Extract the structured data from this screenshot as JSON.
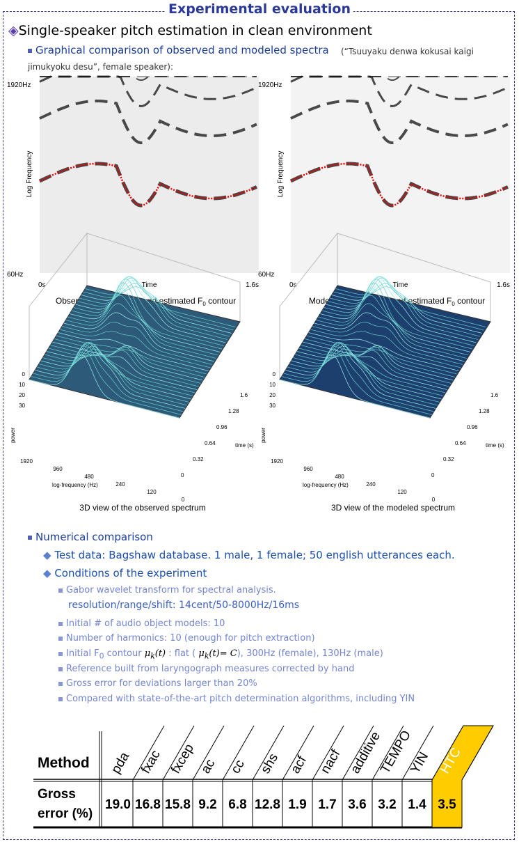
{
  "header": {
    "title": "Experimental evaluation"
  },
  "section": {
    "title": "Single-speaker pitch estimation in clean environment"
  },
  "graphical": {
    "heading": "Graphical comparison of observed and modeled spectra",
    "note": "(“Tsuuyaku denwa kokusai kaigi jimukyoku desu”, female speaker):"
  },
  "spectrograms": [
    {
      "y_top": "1920Hz",
      "y_bottom": "60Hz",
      "y_label": "Log Frequency",
      "x_left": "0s",
      "x_mid": "Time",
      "x_right": "1.6s",
      "caption_pre": "Observed spectrogram and estimated F",
      "caption_sub": "0",
      "caption_post": " contour"
    },
    {
      "y_top": "1920Hz",
      "y_bottom": "60Hz",
      "y_label": "Log Frequency",
      "x_left": "0s",
      "x_mid": "Time",
      "x_right": "1.6s",
      "caption_pre": "Modeled spectrogram and estimated F",
      "caption_sub": "0",
      "caption_post": " contour"
    }
  ],
  "views3d": [
    {
      "caption": "3D view of the observed spectrum",
      "z_label": "power",
      "x_label": "log-frequency (Hz)",
      "y_label": "time (s)",
      "z_ticks": [
        "30",
        "20",
        "10",
        "0"
      ],
      "x_ticks": [
        "1920",
        "960",
        "480",
        "240",
        "120",
        "0"
      ],
      "y_ticks": [
        "1.6",
        "1.28",
        "0.96",
        "0.64",
        "0.32",
        "0"
      ]
    },
    {
      "caption": "3D view of the modeled spectrum",
      "z_label": "power",
      "x_label": "log-frequency (Hz)",
      "y_label": "time (s)",
      "z_ticks": [
        "30",
        "20",
        "10",
        "0"
      ],
      "x_ticks": [
        "1920",
        "960",
        "480",
        "240",
        "120",
        "0"
      ],
      "y_ticks": [
        "1.6",
        "1.28",
        "0.96",
        "0.64",
        "0.32",
        "0"
      ]
    }
  ],
  "numerical": {
    "heading": "Numerical comparison",
    "items": [
      "Test data: Bagshaw database. 1 male, 1 female; 50 english utterances each.",
      "Conditions of the experiment"
    ],
    "conditions": {
      "gabor": "Gabor wavelet transform for spectral analysis.",
      "gabor_detail": "resolution/range/shift: 14cent/50-8000Hz/16ms",
      "models": "Initial # of audio object models: 10",
      "harmonics": "Number of harmonics: 10 (enough for pitch extraction)",
      "f0_pre": "Initial F",
      "f0_sub": "0",
      "f0_mid": " contour ",
      "mu": "μ",
      "mu_sub": "k",
      "mu_arg": "(t)",
      "f0_flat": " : flat ( ",
      "f0_eq": "= C",
      "f0_post": "), 300Hz (female), 130Hz (male)",
      "reference": "Reference built from laryngograph measures corrected by hand",
      "gross": "Gross error for deviations larger than 20%",
      "compared": "Compared with state-of-the-art pitch determination algorithms, including YIN"
    }
  },
  "table": {
    "header": "Method",
    "row_label_1": "Gross",
    "row_label_2": "error (%)",
    "methods": [
      "pda",
      "fxac",
      "fxcep",
      "ac",
      "cc",
      "shs",
      "acf",
      "nacf",
      "additive",
      "TEMPO",
      "YIN",
      "HTC"
    ],
    "values": [
      "19.0",
      "16.8",
      "15.8",
      "9.2",
      "6.8",
      "12.8",
      "1.9",
      "1.7",
      "3.6",
      "3.2",
      "1.4",
      "3.5"
    ]
  }
}
